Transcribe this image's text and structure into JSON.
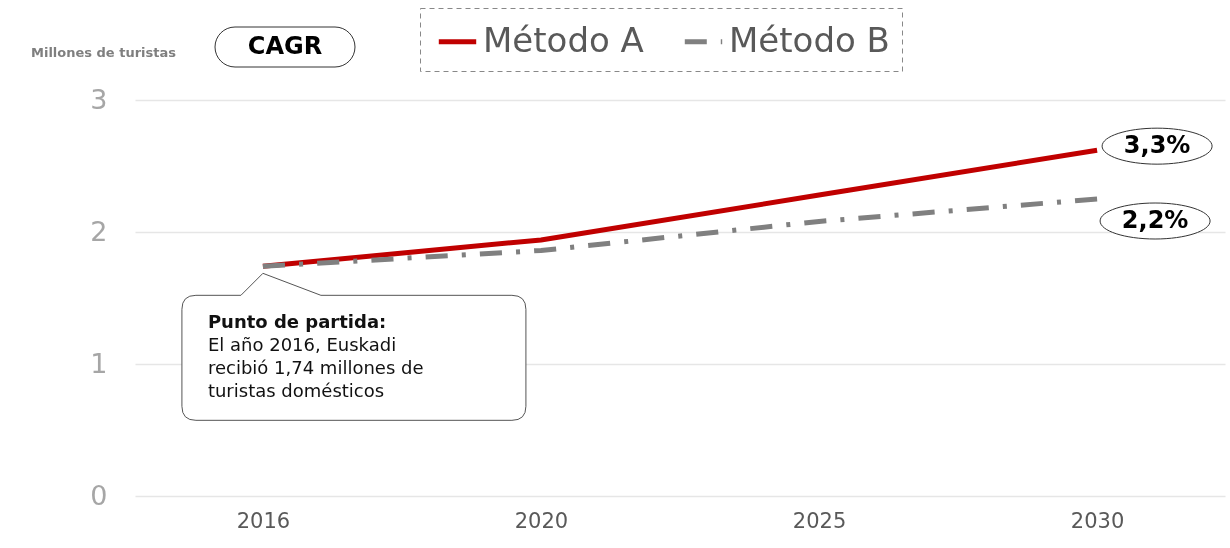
{
  "chart_data": {
    "type": "line",
    "ylabel": "Millones de turistas",
    "categories": [
      "2016",
      "2020",
      "2025",
      "2030"
    ],
    "series": [
      {
        "name": "Método A",
        "color": "#c00000",
        "line_style": "solid",
        "values": [
          1.74,
          1.94,
          2.28,
          2.62
        ]
      },
      {
        "name": "Método B",
        "color": "#808080",
        "line_style": "dashed",
        "values": [
          1.74,
          1.86,
          2.08,
          2.25
        ]
      }
    ],
    "ylim": [
      0,
      3
    ],
    "yticks": [
      0,
      1,
      2,
      3
    ],
    "grid": "y",
    "legend": "top",
    "marker": "none",
    "annotations": [
      "CAGR",
      {
        "text": "3,3%",
        "x": "2030",
        "y": 2.62
      },
      {
        "text": "2,2%",
        "x": "2030",
        "y": 2.25
      },
      {
        "text": "Punto de partida:\nEl año 2016, Euskadi\nrecibió 1,74 millones de\nturistas domésticos",
        "x": "2016",
        "y": 1.74
      }
    ]
  }
}
